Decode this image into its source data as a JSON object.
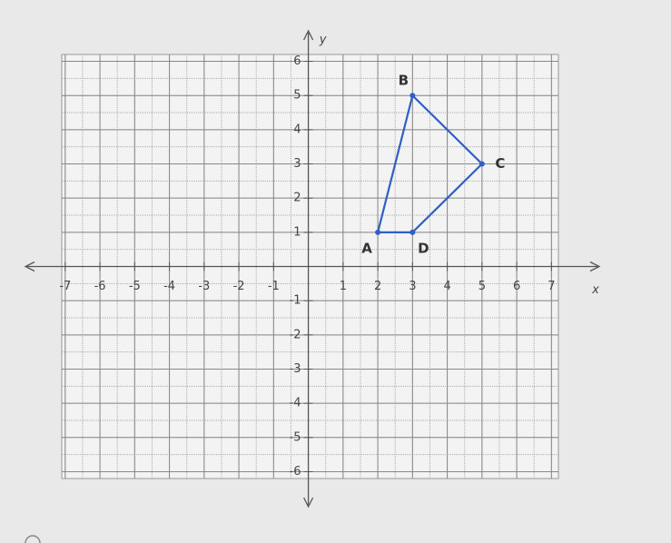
{
  "chart_data": {
    "type": "polygon",
    "x_label": "x",
    "y_label": "y",
    "xlim": [
      -7.1,
      7.2
    ],
    "ylim": [
      -6.2,
      6.2
    ],
    "xticks": [
      -7,
      -6,
      -5,
      -4,
      -3,
      -2,
      -1,
      1,
      2,
      3,
      4,
      5,
      6,
      7
    ],
    "yticks": [
      -6,
      -5,
      -4,
      -3,
      -2,
      -1,
      1,
      2,
      3,
      4,
      5,
      6
    ],
    "grid": true,
    "color": "#2f5fc4",
    "labels": [
      "A",
      "B",
      "C",
      "D"
    ],
    "x": [
      2,
      3,
      5,
      3
    ],
    "y": [
      1,
      5,
      3,
      1
    ]
  }
}
